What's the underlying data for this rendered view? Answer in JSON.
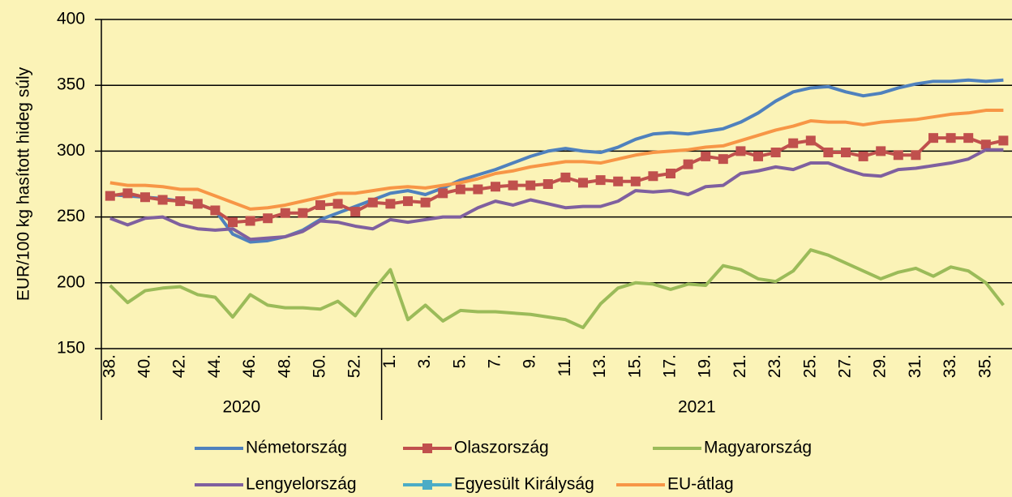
{
  "chart_data": {
    "type": "line",
    "y_label": "EUR/100 kg hasított hideg súly",
    "categories": [
      "38.",
      null,
      "40.",
      null,
      "42.",
      null,
      "44.",
      null,
      "46.",
      null,
      "48.",
      null,
      "50.",
      null,
      "52.",
      null,
      "1.",
      null,
      "3.",
      null,
      "5.",
      null,
      "7.",
      null,
      "9.",
      null,
      "11.",
      null,
      "13.",
      null,
      "15.",
      null,
      "17.",
      null,
      "19.",
      null,
      "21.",
      null,
      "23.",
      null,
      "25.",
      null,
      "27.",
      null,
      "29.",
      null,
      "31.",
      null,
      "33.",
      null,
      "35.",
      null
    ],
    "groups": [
      {
        "label": "2020",
        "start": 0,
        "end": 15
      },
      {
        "label": "2021",
        "start": 16,
        "end": 51
      }
    ],
    "ylim": [
      150,
      400
    ],
    "yticks": [
      150,
      200,
      250,
      300,
      350,
      400
    ],
    "grid": true,
    "series": [
      {
        "name": "Németország",
        "color": "#4f81bd",
        "values": [
          267,
          266,
          265,
          264,
          262,
          260,
          255,
          237,
          231,
          232,
          235,
          240,
          248,
          253,
          258,
          263,
          268,
          270,
          267,
          272,
          278,
          282,
          286,
          291,
          296,
          300,
          302,
          300,
          299,
          303,
          309,
          313,
          314,
          313,
          315,
          317,
          322,
          329,
          338,
          345,
          348,
          349,
          345,
          342,
          344,
          348,
          351,
          353,
          353,
          354,
          353,
          354
        ]
      },
      {
        "name": "Olaszország",
        "color": "#c0504d",
        "marker": "square",
        "values": [
          266,
          268,
          265,
          263,
          262,
          260,
          255,
          246,
          247,
          249,
          253,
          253,
          259,
          260,
          254,
          261,
          260,
          262,
          261,
          268,
          271,
          271,
          273,
          274,
          274,
          275,
          280,
          276,
          278,
          277,
          277,
          281,
          283,
          290,
          296,
          294,
          300,
          296,
          299,
          306,
          308,
          299,
          299,
          296,
          300,
          297,
          297,
          310,
          310,
          310,
          305,
          308
        ]
      },
      {
        "name": "Magyarország",
        "color": "#9bbb59",
        "values": [
          198,
          185,
          194,
          196,
          197,
          191,
          189,
          174,
          191,
          183,
          181,
          181,
          180,
          186,
          175,
          194,
          210,
          172,
          183,
          171,
          179,
          178,
          178,
          177,
          176,
          174,
          172,
          166,
          184,
          196,
          200,
          199,
          195,
          199,
          198,
          213,
          210,
          203,
          201,
          209,
          225,
          221,
          215,
          209,
          203,
          208,
          211,
          205,
          212,
          209,
          200,
          183
        ]
      },
      {
        "name": "Lengyelország",
        "color": "#7f609f",
        "values": [
          249,
          244,
          249,
          250,
          244,
          241,
          240,
          241,
          233,
          234,
          235,
          239,
          247,
          246,
          243,
          241,
          248,
          246,
          248,
          250,
          250,
          257,
          262,
          259,
          263,
          260,
          257,
          258,
          258,
          262,
          270,
          269,
          270,
          267,
          273,
          274,
          283,
          285,
          288,
          286,
          291,
          291,
          286,
          282,
          281,
          286,
          287,
          289,
          291,
          294,
          301,
          301
        ]
      },
      {
        "name": "Egyesült Királyság",
        "color": "#4bacc6",
        "marker": "square",
        "values": [
          null,
          null,
          null,
          null,
          null,
          null,
          null,
          null,
          null,
          null,
          null,
          null,
          null,
          null,
          null,
          null,
          null,
          null,
          null,
          null,
          null,
          null,
          null,
          null,
          null,
          null,
          null,
          null,
          null,
          null,
          null,
          null,
          null,
          null,
          null,
          null,
          null,
          null,
          null,
          null,
          null,
          null,
          null,
          null,
          null,
          null,
          null,
          null,
          null,
          null,
          null,
          null
        ]
      },
      {
        "name": "EU-átlag",
        "color": "#f79646",
        "values": [
          276,
          274,
          274,
          273,
          271,
          271,
          266,
          261,
          256,
          257,
          259,
          262,
          265,
          268,
          268,
          270,
          272,
          273,
          272,
          274,
          276,
          279,
          283,
          285,
          288,
          290,
          292,
          292,
          291,
          294,
          297,
          299,
          300,
          301,
          303,
          304,
          308,
          312,
          316,
          319,
          323,
          322,
          322,
          320,
          322,
          323,
          324,
          326,
          328,
          329,
          331,
          331
        ]
      }
    ]
  }
}
